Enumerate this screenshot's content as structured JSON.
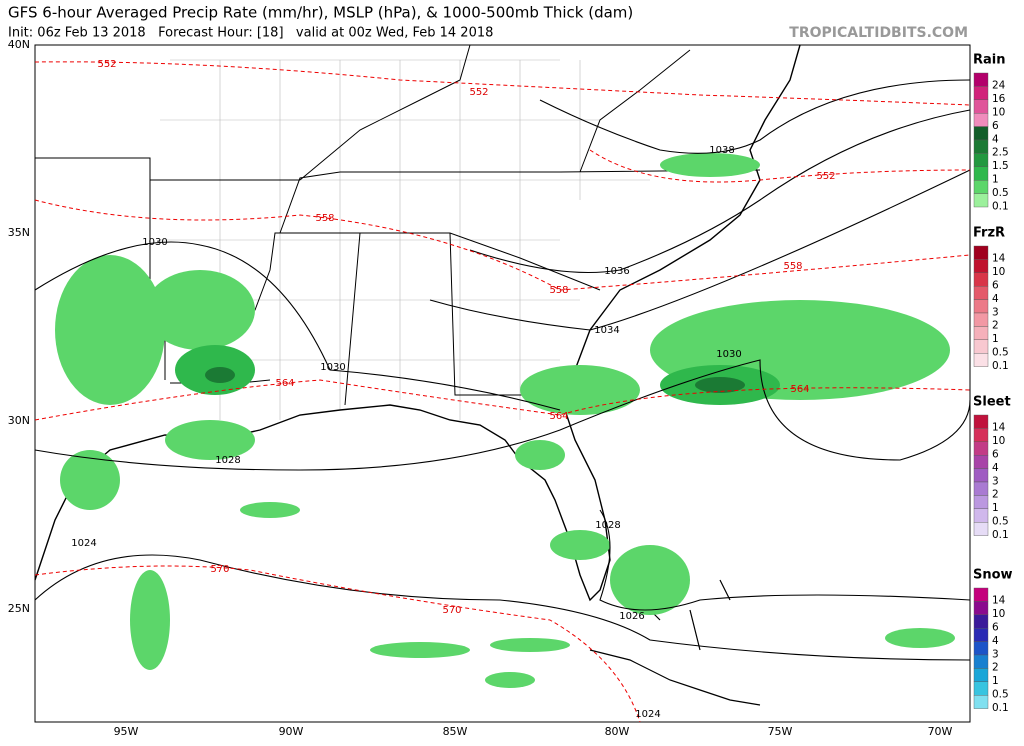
{
  "header": {
    "title": "GFS 6-hour Averaged Precip Rate (mm/hr), MSLP (hPa), & 1000-500mb Thick (dam)",
    "subtitle": "Init: 06z Feb 13 2018   Forecast Hour: [18]   valid at 00z Wed, Feb 14 2018",
    "site": "TROPICALTIDBITS.COM"
  },
  "map": {
    "lat_labels": [
      "40N",
      "35N",
      "30N",
      "25N"
    ],
    "lon_labels": [
      "95W",
      "90W",
      "85W",
      "80W",
      "75W",
      "70W"
    ],
    "isobar_labels": [
      "1038",
      "1036",
      "1034",
      "1030",
      "1030",
      "1030",
      "1028",
      "1028",
      "1026",
      "1024",
      "1024"
    ],
    "thickness_labels": [
      "552",
      "552",
      "552",
      "558",
      "558",
      "558",
      "564",
      "564",
      "564",
      "570",
      "570"
    ]
  },
  "legend": [
    {
      "title": "Rain",
      "items": [
        {
          "label": "24",
          "color": "#b3006b"
        },
        {
          "label": "16",
          "color": "#d1237a"
        },
        {
          "label": "10",
          "color": "#e0559a"
        },
        {
          "label": "6",
          "color": "#f08cbc"
        },
        {
          "label": "4",
          "color": "#135e2a"
        },
        {
          "label": "2.5",
          "color": "#1b7a34"
        },
        {
          "label": "1.5",
          "color": "#22983f"
        },
        {
          "label": "1",
          "color": "#2fb84c"
        },
        {
          "label": "0.5",
          "color": "#5cd66a"
        },
        {
          "label": "0.1",
          "color": "#9cf09c"
        }
      ]
    },
    {
      "title": "FrzR",
      "items": [
        {
          "label": "14",
          "color": "#a0001e"
        },
        {
          "label": "10",
          "color": "#c0122e"
        },
        {
          "label": "6",
          "color": "#d83548"
        },
        {
          "label": "4",
          "color": "#e45a6a"
        },
        {
          "label": "3",
          "color": "#ec7a88"
        },
        {
          "label": "2",
          "color": "#f298a4"
        },
        {
          "label": "1",
          "color": "#f5b0ba"
        },
        {
          "label": "0.5",
          "color": "#f8c8d0"
        },
        {
          "label": "0.1",
          "color": "#fbe0e6"
        }
      ]
    },
    {
      "title": "Sleet",
      "items": [
        {
          "label": "14",
          "color": "#c0123c"
        },
        {
          "label": "10",
          "color": "#d6305a"
        },
        {
          "label": "6",
          "color": "#c23c86"
        },
        {
          "label": "4",
          "color": "#a844a8"
        },
        {
          "label": "3",
          "color": "#9f5cc2"
        },
        {
          "label": "2",
          "color": "#a97ad2"
        },
        {
          "label": "1",
          "color": "#bb98e0"
        },
        {
          "label": "0.5",
          "color": "#d0b8ec"
        },
        {
          "label": "0.1",
          "color": "#e6dcf6"
        }
      ]
    },
    {
      "title": "Snow",
      "items": [
        {
          "label": "14",
          "color": "#c4007c"
        },
        {
          "label": "10",
          "color": "#8a0a8e"
        },
        {
          "label": "6",
          "color": "#3a1a9a"
        },
        {
          "label": "4",
          "color": "#2a2ab4"
        },
        {
          "label": "3",
          "color": "#1c54c8"
        },
        {
          "label": "2",
          "color": "#1880d0"
        },
        {
          "label": "1",
          "color": "#1aa6d8"
        },
        {
          "label": "0.5",
          "color": "#38c4e0"
        },
        {
          "label": "0.1",
          "color": "#80e0f0"
        }
      ]
    }
  ]
}
